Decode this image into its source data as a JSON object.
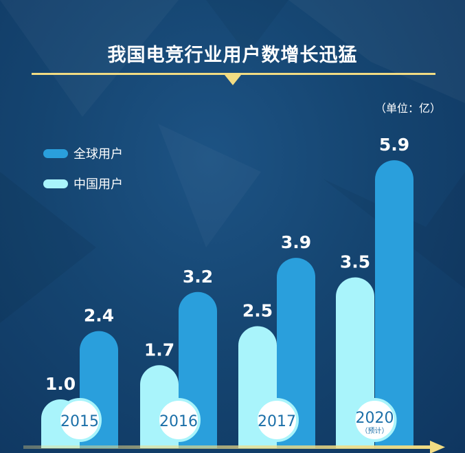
{
  "title": "我国电竞行业用户数增长迅猛",
  "unit": "（单位：亿）",
  "colors": {
    "global": "#2a9fdc",
    "china": "#a9f4fb",
    "accent": "#f2dc83",
    "year_text": "#1b6fa8"
  },
  "chart_data": {
    "type": "bar",
    "title": "我国电竞行业用户数增长迅猛",
    "xlabel": "",
    "ylabel": "",
    "unit": "（单位：亿）",
    "categories": [
      "2015",
      "2016",
      "2017",
      "2020"
    ],
    "category_notes": [
      "",
      "",
      "",
      "（预计）"
    ],
    "series": [
      {
        "name": "中国用户",
        "values": [
          1.0,
          1.7,
          2.5,
          3.5
        ]
      },
      {
        "name": "全球用户",
        "values": [
          2.4,
          3.2,
          3.9,
          5.9
        ]
      }
    ],
    "data_labels": [
      [
        "1.0",
        "1.7",
        "2.5",
        "3.5"
      ],
      [
        "2.4",
        "3.2",
        "3.9",
        "5.9"
      ]
    ],
    "legend": {
      "placement": "top-left",
      "entries": [
        "全球用户",
        "中国用户"
      ]
    },
    "grid": false
  }
}
